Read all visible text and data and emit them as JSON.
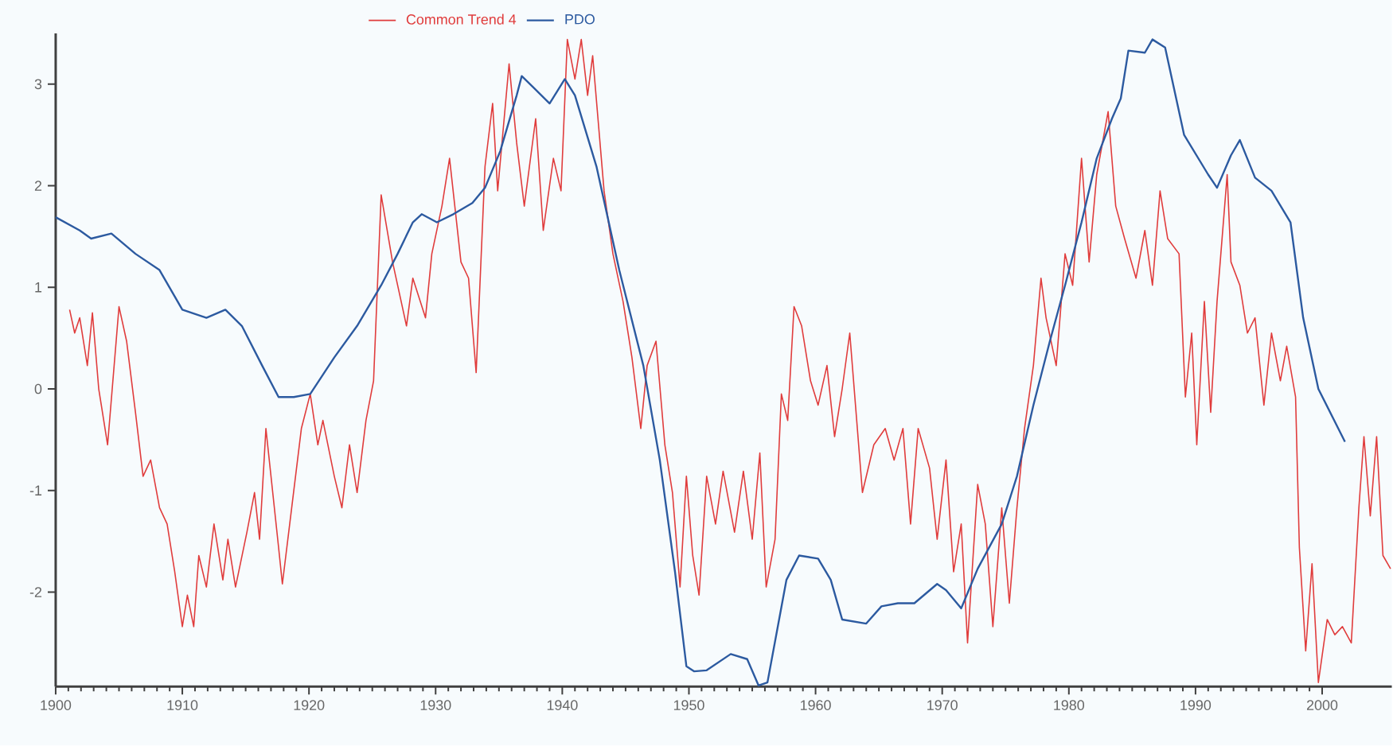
{
  "chart_data": {
    "type": "line",
    "legend": "top",
    "marker": "none",
    "line_style": "solid",
    "xlim": [
      1900,
      2005.5
    ],
    "xticks": [
      1900,
      1910,
      1920,
      1930,
      1940,
      1950,
      1960,
      1970,
      1980,
      1990,
      2000
    ],
    "ylim": [
      -2.93,
      3.5
    ],
    "yticks": [
      -2,
      -1,
      0,
      1,
      2,
      3
    ],
    "series": [
      {
        "name": "Common Trend 4",
        "color": "#e03c3c",
        "x": [
          1901.1,
          1901.5,
          1901.9,
          1902.5,
          1902.9,
          1903.4,
          1904.1,
          1905.0,
          1905.6,
          1906.3,
          1906.9,
          1907.5,
          1908.2,
          1908.8,
          1909.4,
          1910.0,
          1910.4,
          1910.9,
          1911.3,
          1911.9,
          1912.5,
          1913.2,
          1913.6,
          1914.2,
          1915.1,
          1915.7,
          1916.1,
          1916.6,
          1917.6,
          1917.9,
          1918.4,
          1919.4,
          1920.1,
          1920.7,
          1921.1,
          1922.0,
          1922.6,
          1923.2,
          1923.8,
          1924.5,
          1925.1,
          1925.7,
          1926.6,
          1927.7,
          1928.2,
          1929.2,
          1929.7,
          1930.5,
          1931.1,
          1932.0,
          1932.6,
          1933.2,
          1933.9,
          1934.5,
          1934.9,
          1935.8,
          1936.4,
          1937.0,
          1937.9,
          1938.5,
          1939.3,
          1939.9,
          1940.4,
          1941.0,
          1941.5,
          1942.0,
          1942.4,
          1943.3,
          1944.0,
          1944.8,
          1945.5,
          1946.2,
          1946.7,
          1947.4,
          1948.1,
          1948.7,
          1949.3,
          1949.8,
          1950.3,
          1950.8,
          1951.4,
          1952.1,
          1952.7,
          1953.6,
          1954.3,
          1955.0,
          1955.6,
          1956.1,
          1956.8,
          1957.3,
          1957.8,
          1958.3,
          1958.9,
          1959.6,
          1960.2,
          1960.9,
          1961.5,
          1962.1,
          1962.7,
          1963.7,
          1964.6,
          1965.5,
          1966.2,
          1966.9,
          1967.5,
          1968.1,
          1969.0,
          1969.6,
          1970.3,
          1970.9,
          1971.5,
          1972.0,
          1972.8,
          1973.4,
          1974.0,
          1974.7,
          1975.3,
          1975.9,
          1976.5,
          1977.2,
          1977.8,
          1978.2,
          1979.0,
          1979.7,
          1980.3,
          1981.0,
          1981.6,
          1982.2,
          1983.1,
          1983.7,
          1984.4,
          1985.3,
          1986.0,
          1986.6,
          1987.2,
          1987.8,
          1988.7,
          1989.2,
          1989.7,
          1990.1,
          1990.7,
          1991.2,
          1991.7,
          1992.5,
          1992.8,
          1993.5,
          1994.1,
          1994.7,
          1995.4,
          1996.0,
          1996.7,
          1997.2,
          1997.9,
          1998.2,
          1998.7,
          1999.2,
          1999.7,
          2000.4,
          2001.0,
          2001.6,
          2002.3,
          2002.9,
          2003.3,
          2003.8,
          2004.3,
          2004.8,
          2005.4
        ],
        "values": [
          0.78,
          0.55,
          0.7,
          0.23,
          0.75,
          0,
          -0.55,
          0.81,
          0.47,
          -0.23,
          -0.86,
          -0.7,
          -1.17,
          -1.33,
          -1.8,
          -2.34,
          -2.03,
          -2.34,
          -1.64,
          -1.95,
          -1.33,
          -1.88,
          -1.48,
          -1.95,
          -1.41,
          -1.02,
          -1.48,
          -0.39,
          -1.56,
          -1.92,
          -1.41,
          -0.39,
          -0.05,
          -0.55,
          -0.31,
          -0.86,
          -1.17,
          -0.55,
          -1.02,
          -0.31,
          0.08,
          1.91,
          1.25,
          0.62,
          1.09,
          0.7,
          1.33,
          1.8,
          2.27,
          1.25,
          1.09,
          0.16,
          2.19,
          2.81,
          1.95,
          3.2,
          2.42,
          1.8,
          2.66,
          1.56,
          2.27,
          1.95,
          3.44,
          3.05,
          3.44,
          2.89,
          3.28,
          1.95,
          1.33,
          0.86,
          0.31,
          -0.39,
          0.23,
          0.47,
          -0.55,
          -1.02,
          -1.95,
          -0.86,
          -1.64,
          -2.03,
          -0.86,
          -1.33,
          -0.81,
          -1.41,
          -0.81,
          -1.48,
          -0.63,
          -1.95,
          -1.48,
          -0.05,
          -0.31,
          0.81,
          0.62,
          0.08,
          -0.16,
          0.23,
          -0.47,
          0,
          0.55,
          -1.02,
          -0.55,
          -0.39,
          -0.7,
          -0.39,
          -1.33,
          -0.39,
          -0.78,
          -1.48,
          -0.7,
          -1.8,
          -1.33,
          -2.5,
          -0.94,
          -1.33,
          -2.34,
          -1.17,
          -2.11,
          -1.17,
          -0.39,
          0.23,
          1.09,
          0.7,
          0.23,
          1.33,
          1.02,
          2.27,
          1.25,
          2.11,
          2.73,
          1.8,
          1.48,
          1.09,
          1.56,
          1.02,
          1.95,
          1.48,
          1.33,
          -0.08,
          0.55,
          -0.55,
          0.86,
          -0.23,
          0.86,
          2.11,
          1.25,
          1.02,
          0.55,
          0.7,
          -0.16,
          0.55,
          0.08,
          0.42,
          -0.08,
          -1.56,
          -2.58,
          -1.72,
          -2.89,
          -2.27,
          -2.42,
          -2.34,
          -2.5,
          -1.17,
          -0.47,
          -1.25,
          -0.47,
          -1.64,
          -1.77
        ]
      },
      {
        "name": "PDO",
        "color": "#2c5aa0",
        "x": [
          1900.0,
          1901.9,
          1902.8,
          1904.4,
          1906.3,
          1908.2,
          1910.0,
          1911.9,
          1913.4,
          1914.7,
          1916.3,
          1917.6,
          1918.8,
          1920.1,
          1922.0,
          1923.8,
          1925.7,
          1927.0,
          1928.2,
          1928.9,
          1930.1,
          1931.4,
          1932.9,
          1933.9,
          1935.1,
          1936.4,
          1936.8,
          1937.7,
          1939.0,
          1940.2,
          1941.0,
          1942.7,
          1944.5,
          1946.4,
          1947.7,
          1948.9,
          1949.8,
          1950.4,
          1951.4,
          1953.3,
          1954.6,
          1955.5,
          1956.2,
          1957.7,
          1958.7,
          1960.2,
          1961.2,
          1962.1,
          1964.0,
          1965.2,
          1966.5,
          1967.8,
          1969.6,
          1970.3,
          1971.5,
          1972.8,
          1974.7,
          1975.9,
          1977.2,
          1978.5,
          1979.7,
          1981.0,
          1982.2,
          1983.4,
          1984.1,
          1984.7,
          1986.0,
          1986.6,
          1987.6,
          1989.1,
          1991.0,
          1991.7,
          1992.8,
          1993.5,
          1994.7,
          1996.0,
          1997.5,
          1998.5,
          1999.7,
          2001.8
        ],
        "values": [
          1.69,
          1.56,
          1.48,
          1.53,
          1.33,
          1.17,
          0.78,
          0.7,
          0.78,
          0.62,
          0.23,
          -0.08,
          -0.08,
          -0.05,
          0.31,
          0.62,
          1.02,
          1.33,
          1.64,
          1.72,
          1.64,
          1.72,
          1.83,
          1.98,
          2.34,
          2.89,
          3.08,
          2.97,
          2.81,
          3.05,
          2.89,
          2.19,
          1.17,
          0.23,
          -0.7,
          -1.8,
          -2.73,
          -2.78,
          -2.77,
          -2.61,
          -2.66,
          -2.92,
          -2.89,
          -1.88,
          -1.64,
          -1.67,
          -1.88,
          -2.27,
          -2.31,
          -2.14,
          -2.11,
          -2.11,
          -1.92,
          -1.98,
          -2.16,
          -1.77,
          -1.33,
          -0.86,
          -0.16,
          0.47,
          1.02,
          1.64,
          2.27,
          2.66,
          2.86,
          3.33,
          3.31,
          3.44,
          3.36,
          2.5,
          2.11,
          1.98,
          2.3,
          2.45,
          2.08,
          1.95,
          1.64,
          0.7,
          0,
          -0.52
        ]
      }
    ]
  }
}
